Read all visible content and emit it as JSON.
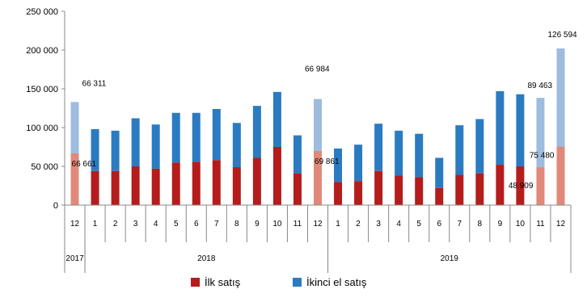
{
  "chart_data": {
    "type": "bar",
    "stacked": true,
    "categories": [
      "12",
      "1",
      "2",
      "3",
      "4",
      "5",
      "6",
      "7",
      "8",
      "9",
      "10",
      "11",
      "12",
      "1",
      "2",
      "3",
      "4",
      "5",
      "6",
      "7",
      "8",
      "9",
      "10",
      "11",
      "12"
    ],
    "years": [
      {
        "label": "2017",
        "span": [
          0,
          0
        ]
      },
      {
        "label": "2018",
        "span": [
          1,
          12
        ]
      },
      {
        "label": "2019",
        "span": [
          13,
          24
        ]
      }
    ],
    "series": [
      {
        "name": "İlk satış",
        "color": "#b51c1c",
        "highlight_color": "#e0897a",
        "values": [
          66661,
          44000,
          44000,
          50000,
          47000,
          55000,
          56000,
          58000,
          49000,
          61000,
          75000,
          41000,
          69861,
          30000,
          31000,
          44000,
          38000,
          36000,
          22000,
          39000,
          41000,
          52000,
          50000,
          48909,
          75480
        ]
      },
      {
        "name": "İkinci el satış",
        "color": "#2b7bc1",
        "highlight_color": "#9dbcde",
        "values": [
          66311,
          54000,
          52000,
          62000,
          57000,
          64000,
          63000,
          66000,
          57000,
          67000,
          71000,
          49000,
          66984,
          43000,
          47000,
          61000,
          58000,
          56000,
          39000,
          64000,
          70000,
          95000,
          93000,
          89463,
          126594
        ]
      }
    ],
    "highlighted_indices": [
      0,
      12,
      23,
      24
    ],
    "data_labels": [
      {
        "index": 0,
        "series": 0,
        "text": "66 661"
      },
      {
        "index": 0,
        "series": 1,
        "text": "66 311"
      },
      {
        "index": 12,
        "series": 0,
        "text": "69 861"
      },
      {
        "index": 12,
        "series": 1,
        "text": "66 984"
      },
      {
        "index": 23,
        "series": 0,
        "text": "48 909"
      },
      {
        "index": 23,
        "series": 1,
        "text": "89 463"
      },
      {
        "index": 24,
        "series": 0,
        "text": "75 480"
      },
      {
        "index": 24,
        "series": 1,
        "text": "126 594"
      }
    ],
    "yticks": [
      "0",
      "50 000",
      "100 000",
      "150 000",
      "200 000",
      "250 000"
    ],
    "ylim": [
      0,
      250000
    ],
    "grid": false,
    "legend_position": "bottom"
  }
}
